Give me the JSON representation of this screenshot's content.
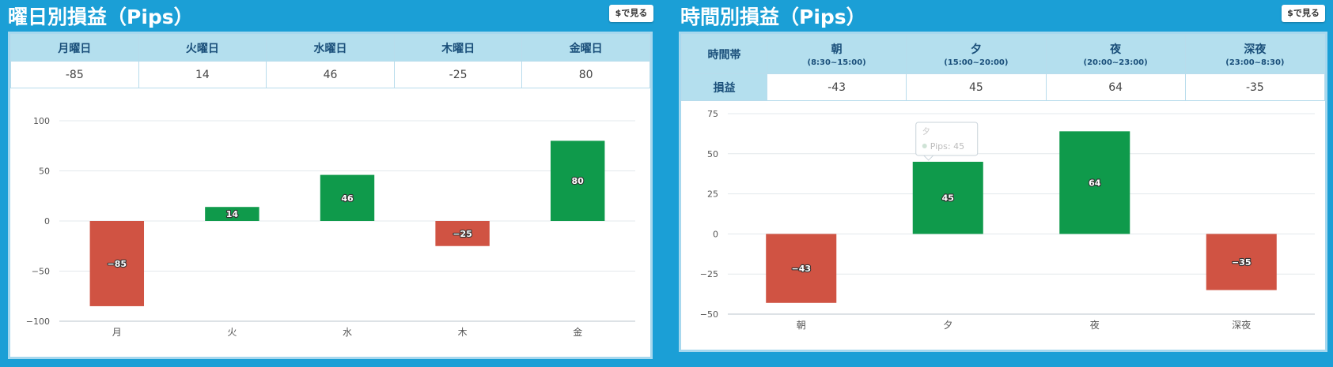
{
  "left": {
    "title": "曜日別損益（Pips）",
    "button_label": "$で見る",
    "table": {
      "headers": [
        "月曜日",
        "火曜日",
        "水曜日",
        "木曜日",
        "金曜日"
      ],
      "values": [
        "-85",
        "14",
        "46",
        "-25",
        "80"
      ]
    }
  },
  "right": {
    "title": "時間別損益（Pips）",
    "button_label": "$で見る",
    "table": {
      "row_header_top": "時間帯",
      "row_header_bottom": "損益",
      "headers": [
        {
          "name": "朝",
          "range": "(8:30~15:00)"
        },
        {
          "name": "夕",
          "range": "(15:00~20:00)"
        },
        {
          "name": "夜",
          "range": "(20:00~23:00)"
        },
        {
          "name": "深夜",
          "range": "(23:00~8:30)"
        }
      ],
      "values": [
        "-43",
        "45",
        "64",
        "-35"
      ]
    },
    "tooltip": {
      "title": "夕",
      "text": "Pips: 45"
    }
  },
  "colors": {
    "positive": "#0f9a4b",
    "negative": "#d05343",
    "background": "#1b9fd6",
    "header": "#b4dfee"
  },
  "chart_data": [
    {
      "type": "bar",
      "title": "曜日別損益（Pips）",
      "categories": [
        "月",
        "火",
        "水",
        "木",
        "金"
      ],
      "values": [
        -85,
        14,
        46,
        -25,
        80
      ],
      "ylim": [
        -100,
        100
      ],
      "yticks": [
        100,
        50,
        0,
        -50,
        -100
      ],
      "ytick_labels": [
        "100",
        "50",
        "0",
        "−50",
        "−100"
      ],
      "data_labels": [
        "−85",
        "14",
        "46",
        "−25",
        "80"
      ],
      "grid": true,
      "legend": false
    },
    {
      "type": "bar",
      "title": "時間別損益（Pips）",
      "categories": [
        "朝",
        "夕",
        "夜",
        "深夜"
      ],
      "values": [
        -43,
        45,
        64,
        -35
      ],
      "ylim": [
        -50,
        75
      ],
      "yticks": [
        75,
        50,
        25,
        0,
        -25,
        -50
      ],
      "ytick_labels": [
        "75",
        "50",
        "25",
        "0",
        "−25",
        "−50"
      ],
      "data_labels": [
        "−43",
        "45",
        "64",
        "−35"
      ],
      "grid": true,
      "legend": false
    }
  ]
}
